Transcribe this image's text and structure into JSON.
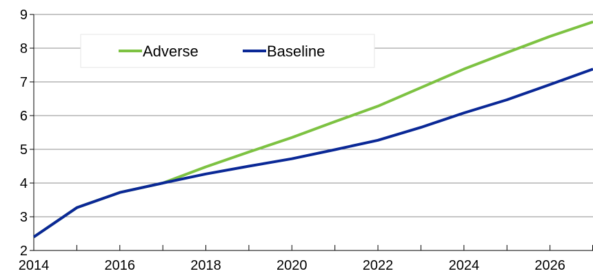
{
  "chart_data": {
    "type": "line",
    "title": "",
    "xlabel": "",
    "ylabel": "",
    "x": [
      2014,
      2015,
      2016,
      2017,
      2018,
      2019,
      2020,
      2021,
      2022,
      2023,
      2024,
      2025,
      2026,
      2027
    ],
    "x_tick_labels": [
      "2014",
      "2016",
      "2018",
      "2020",
      "2022",
      "2024",
      "2026"
    ],
    "y_tick_labels": [
      "2",
      "3",
      "4",
      "5",
      "6",
      "7",
      "8",
      "9"
    ],
    "xlim": [
      2014,
      2027
    ],
    "ylim": [
      2,
      9
    ],
    "grid": "horizontal",
    "legend_position": "top-left",
    "series": [
      {
        "name": "Adverse",
        "color": "#7dc242",
        "values": [
          2.4,
          3.27,
          3.72,
          4.0,
          4.48,
          4.92,
          5.35,
          5.82,
          6.28,
          6.83,
          7.38,
          7.87,
          8.35,
          8.78
        ]
      },
      {
        "name": "Baseline",
        "color": "#0a2896",
        "values": [
          2.4,
          3.27,
          3.72,
          4.0,
          4.27,
          4.5,
          4.72,
          4.99,
          5.27,
          5.65,
          6.08,
          6.47,
          6.92,
          7.38
        ]
      }
    ]
  }
}
